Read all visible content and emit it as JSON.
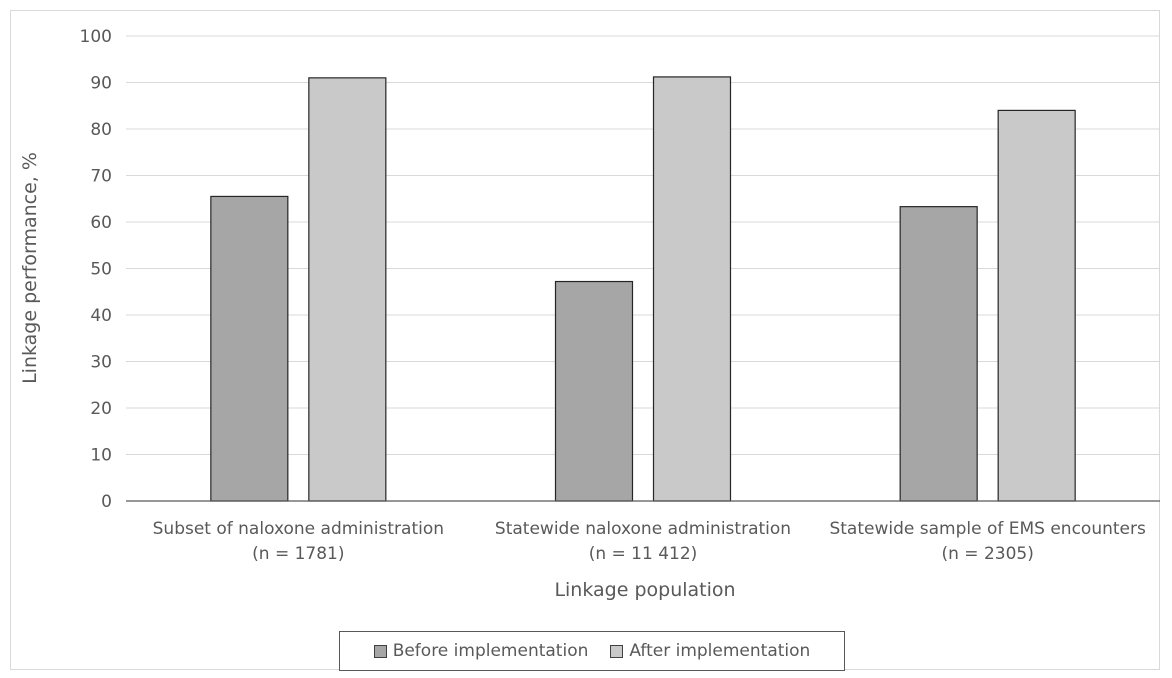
{
  "chart_data": {
    "type": "bar",
    "title": "",
    "xlabel": "Linkage population",
    "ylabel": "Linkage performance, %",
    "ylim": [
      0,
      100
    ],
    "yticks": [
      0,
      10,
      20,
      30,
      40,
      50,
      60,
      70,
      80,
      90,
      100
    ],
    "grid": true,
    "legend_position": "bottom",
    "categories": [
      [
        "Subset of naloxone administration",
        "(n = 1781)"
      ],
      [
        "Statewide naloxone administration",
        "(n = 11 412)"
      ],
      [
        "Statewide sample of EMS encounters",
        "(n = 2305)"
      ]
    ],
    "series": [
      {
        "name": "Before implementation",
        "color": "#a6a6a6",
        "values": [
          65.5,
          47.2,
          63.3
        ]
      },
      {
        "name": "After implementation",
        "color": "#c9c9c9",
        "values": [
          91.0,
          91.2,
          84.0
        ]
      }
    ]
  }
}
